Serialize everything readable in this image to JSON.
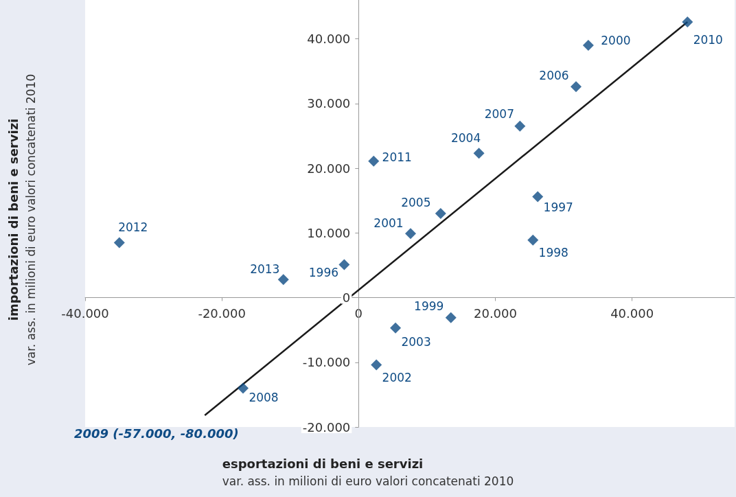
{
  "chart_data": {
    "type": "scatter",
    "xlabel": "esportazioni di beni e servizi\nvar. ass. in milioni di euro valori concatenati 2010",
    "ylabel": "importazioni di beni e servizi\nvar. ass. in milioni di euro valori concatenati 2010",
    "annotations": [
      "2009 (-57.000, -80.000)",
      {
        "text": "1996",
        "x": -2100,
        "y": 5100
      },
      {
        "text": "1997",
        "x": 26200,
        "y": 15600
      },
      {
        "text": "1998",
        "x": 25500,
        "y": 8900
      },
      {
        "text": "1999",
        "x": 13500,
        "y": -3100
      },
      {
        "text": "2000",
        "x": 33600,
        "y": 39000
      },
      {
        "text": "2001",
        "x": 7600,
        "y": 9900
      },
      {
        "text": "2002",
        "x": 2600,
        "y": -10400
      },
      {
        "text": "2003",
        "x": 5400,
        "y": -4700
      },
      {
        "text": "2004",
        "x": 17600,
        "y": 22300
      },
      {
        "text": "2005",
        "x": 12000,
        "y": 13000
      },
      {
        "text": "2006",
        "x": 31800,
        "y": 32600
      },
      {
        "text": "2007",
        "x": 23600,
        "y": 26500
      },
      {
        "text": "2008",
        "x": -16900,
        "y": -14000
      },
      {
        "text": "2010",
        "x": 48100,
        "y": 42600
      },
      {
        "text": "2011",
        "x": 2200,
        "y": 21100
      },
      {
        "text": "2012",
        "x": -35000,
        "y": 8500
      },
      {
        "text": "2013",
        "x": -11000,
        "y": 2800
      }
    ],
    "xlim": [
      -40000,
      55000
    ],
    "ylim": [
      -20000,
      46000
    ],
    "xticks": [
      {
        "value": -40000,
        "label": "-40.000"
      },
      {
        "value": -20000,
        "label": "-20.000"
      },
      0,
      {
        "value": 20000,
        "label": "20.000"
      },
      {
        "value": 40000,
        "label": "40.000"
      }
    ],
    "yticks": [
      {
        "value": -20000,
        "label": "-20.000"
      },
      {
        "value": -10000,
        "label": "-10.000"
      },
      0,
      {
        "value": 10000,
        "label": "10.000"
      },
      {
        "value": 20000,
        "label": "20.000"
      },
      {
        "value": 30000,
        "label": "30.000"
      },
      {
        "value": 40000,
        "label": "40.000"
      }
    ],
    "marker": "diamond",
    "grid": false,
    "series": [
      {
        "type": "scatter",
        "color": "#0f4c85",
        "x": [
          -2100,
          26200,
          25500,
          13500,
          33600,
          7600,
          2600,
          5400,
          17600,
          12000,
          31800,
          23600,
          -16900,
          48100,
          2200,
          -35000,
          -11000
        ],
        "values": [
          5100,
          15600,
          8900,
          -3100,
          39000,
          9900,
          -10400,
          -4700,
          22300,
          13000,
          32600,
          26500,
          -14000,
          42600,
          21100,
          8500,
          2800
        ]
      },
      {
        "type": "line",
        "color": "#1a1a1a",
        "marker": "none",
        "line_style": "solid",
        "x": [
          -22500,
          48100
        ],
        "values": [
          -18200,
          42600
        ]
      }
    ]
  }
}
